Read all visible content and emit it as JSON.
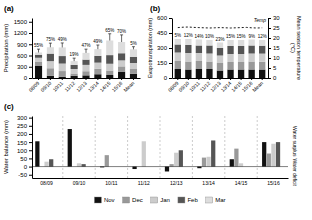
{
  "chart_data": [
    {
      "type": "bar",
      "title": "(a)",
      "stacked": true,
      "y_label": "Precipitation (mm)",
      "categories": [
        "08/09",
        "09/10",
        "10/11",
        "11/12",
        "12/13",
        "13/14",
        "14/15",
        "15/16",
        "Mean"
      ],
      "series": [
        {
          "color": "#111111",
          "values": [
            320,
            60,
            35,
            60,
            70,
            100,
            80,
            170,
            110
          ]
        },
        {
          "color": "#999999",
          "values": [
            120,
            200,
            150,
            60,
            110,
            150,
            120,
            140,
            130
          ]
        },
        {
          "color": "#cccccc",
          "values": [
            100,
            190,
            200,
            120,
            170,
            160,
            180,
            160,
            160
          ]
        },
        {
          "color": "#555555",
          "values": [
            80,
            200,
            200,
            110,
            140,
            180,
            230,
            190,
            165
          ]
        },
        {
          "color": "#dddddd",
          "values": [
            60,
            170,
            230,
            100,
            180,
            180,
            390,
            300,
            200
          ]
        }
      ],
      "errors": [
        90,
        110,
        120,
        80,
        100,
        110,
        180,
        190,
        70
      ],
      "annotations": [
        "55%",
        "75%",
        "49%",
        "19%",
        "47%",
        "49%",
        "65%",
        "70%",
        "5%"
      ],
      "ylim": [
        0,
        1600
      ],
      "yticks": [
        0,
        300,
        600,
        900,
        1200,
        1500
      ],
      "grid": false
    },
    {
      "type": "bar",
      "title": "(b)",
      "stacked": true,
      "y_label": "Evapotranspiration (mm)",
      "y2_label": "Mean season temperature\n(°C)",
      "categories": [
        "08/09",
        "09/10",
        "10/11",
        "11/12",
        "12/13",
        "13/14",
        "14/15",
        "15/16",
        "Mean"
      ],
      "series": [
        {
          "type": "bar",
          "color": "#111111",
          "values": [
            90,
            85,
            90,
            90,
            75,
            85,
            85,
            85,
            85
          ]
        },
        {
          "type": "bar",
          "color": "#999999",
          "values": [
            80,
            80,
            80,
            75,
            75,
            75,
            75,
            80,
            78
          ]
        },
        {
          "type": "bar",
          "color": "#cccccc",
          "values": [
            85,
            85,
            80,
            80,
            75,
            80,
            80,
            80,
            81
          ]
        },
        {
          "type": "bar",
          "color": "#555555",
          "values": [
            80,
            80,
            75,
            80,
            75,
            80,
            80,
            80,
            79
          ]
        },
        {
          "type": "bar",
          "color": "#dddddd",
          "values": [
            55,
            60,
            60,
            55,
            55,
            60,
            60,
            60,
            58
          ]
        },
        {
          "name": "Temp",
          "type": "line",
          "axis": "y2",
          "color": "#000000",
          "line_style": "dotted",
          "x": [
            0,
            0.5,
            1,
            1.5,
            2,
            2.5,
            3,
            3.5,
            4,
            4.5,
            5,
            5.5,
            6,
            6.5,
            7,
            7.5,
            8
          ],
          "values": [
            25.2,
            25.4,
            25.5,
            25.3,
            25.2,
            25.1,
            25.0,
            25.1,
            25.2,
            25.1,
            25.0,
            25.1,
            25.2,
            25.3,
            25.1,
            25.0,
            25.1
          ]
        }
      ],
      "annotations": [
        "5%",
        "12%",
        "14%",
        "10%",
        "23%",
        "15%",
        "15%",
        "9%",
        "12%"
      ],
      "ylim": [
        0,
        600
      ],
      "yticks": [
        0,
        150,
        300,
        450,
        600
      ],
      "y2lim": [
        0,
        30
      ],
      "y2ticks": [
        0,
        5,
        10,
        15,
        20,
        25,
        30
      ],
      "grid": false
    },
    {
      "type": "bar",
      "title": "(c)",
      "y_label": "Water balance (mm)",
      "categories": [
        "08/09",
        "09/10",
        "10/11",
        "11/12",
        "12/13",
        "13/14",
        "14/15",
        "15/16"
      ],
      "series": [
        {
          "name": "Nov",
          "color": "#111111",
          "values": [
            155,
            230,
            -5,
            -15,
            -30,
            -10,
            45,
            150
          ]
        },
        {
          "name": "Dec",
          "color": "#999999",
          "values": [
            0,
            0,
            70,
            0,
            15,
            55,
            110,
            80
          ]
        },
        {
          "name": "Jan",
          "color": "#cccccc",
          "values": [
            30,
            20,
            0,
            155,
            85,
            60,
            20,
            140
          ]
        },
        {
          "name": "Feb",
          "color": "#555555",
          "values": [
            45,
            15,
            0,
            0,
            100,
            160,
            0,
            150
          ]
        },
        {
          "name": "Mar",
          "color": "#dddddd",
          "values": [
            0,
            0,
            0,
            0,
            0,
            0,
            0,
            0
          ]
        }
      ],
      "annotations": [
        "Water surplus",
        "Water deficit"
      ],
      "ylim": [
        -70,
        310
      ],
      "yticks": [
        -50,
        0,
        50,
        100,
        150,
        200,
        250,
        300
      ],
      "legend": "bottom",
      "grid": false
    }
  ]
}
